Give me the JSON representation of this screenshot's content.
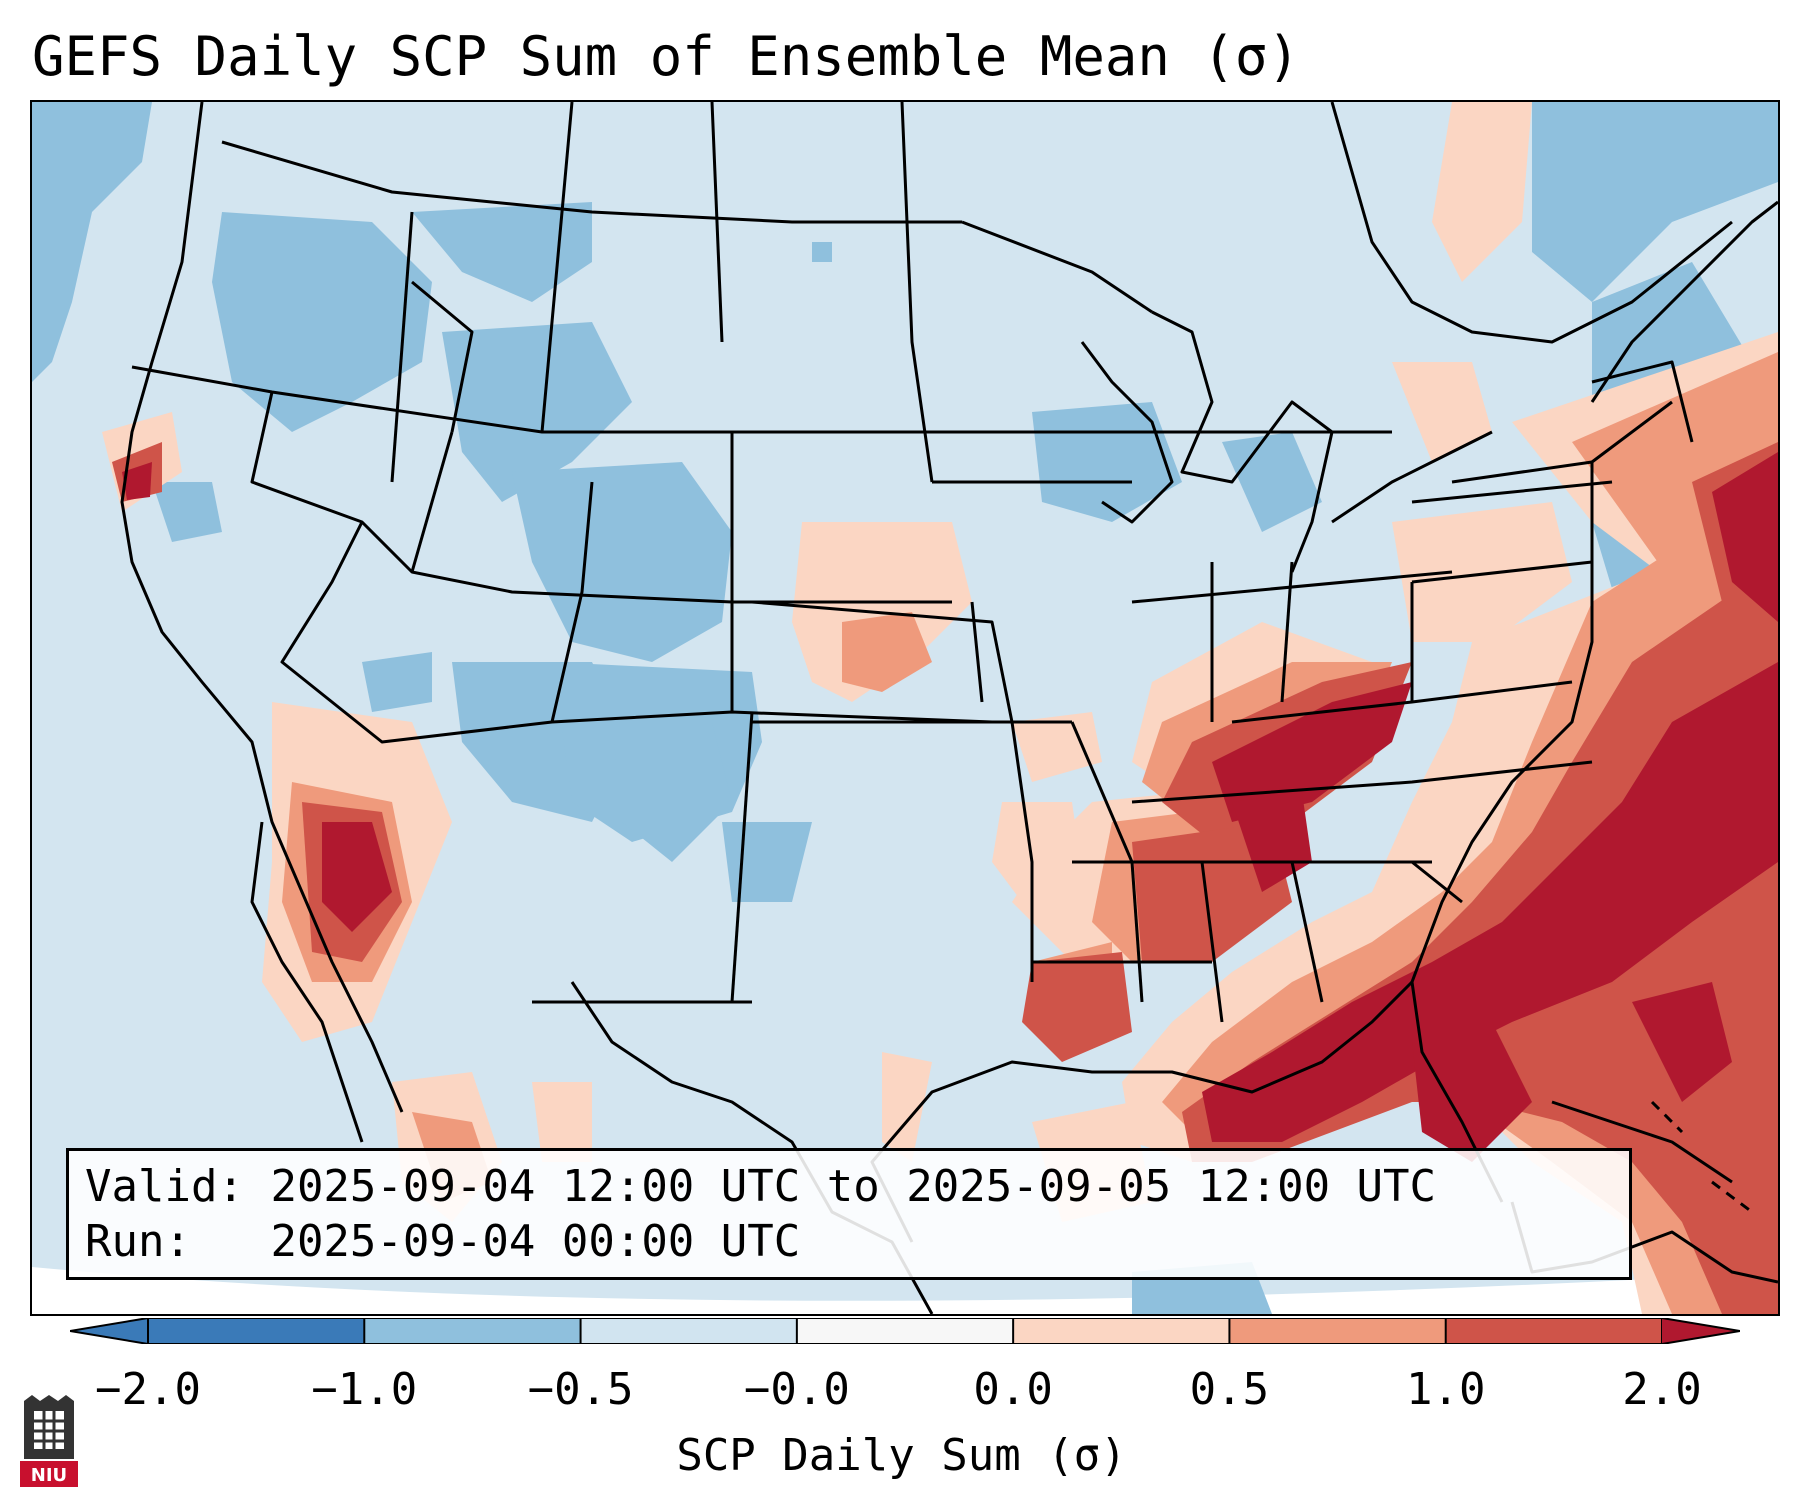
{
  "title": "GEFS Daily SCP Sum of Ensemble Mean (σ)",
  "info": {
    "valid_label": "Valid:",
    "valid_value": "2025-09-04 12:00 UTC to 2025-09-05 12:00 UTC",
    "run_label": "Run:  ",
    "run_value": "2025-09-04 00:00 UTC"
  },
  "colorbar": {
    "label": "SCP Daily Sum (σ)",
    "ticks": [
      "−2.0",
      "−1.0",
      "−0.5",
      "−0.0",
      "0.0",
      "0.5",
      "1.0",
      "2.0"
    ],
    "colors": [
      "#3a7ab8",
      "#8fc0dd",
      "#d1e4f0",
      "#f7f7f7",
      "#fbd6c3",
      "#ef9a7c",
      "#cf5449",
      "#b0182f"
    ],
    "extend": "both"
  },
  "legend_colors": {
    "strong_negative": "#3a7ab8",
    "negative": "#8fc0dd",
    "weak_negative": "#d1e4f0",
    "weak_positive": "#fbd6c3",
    "positive": "#ef9a7c",
    "strong_positive": "#cf5449",
    "very_strong_positive": "#b0182f"
  },
  "logo": {
    "text": "NIU",
    "icon": "niu-logo-icon"
  }
}
